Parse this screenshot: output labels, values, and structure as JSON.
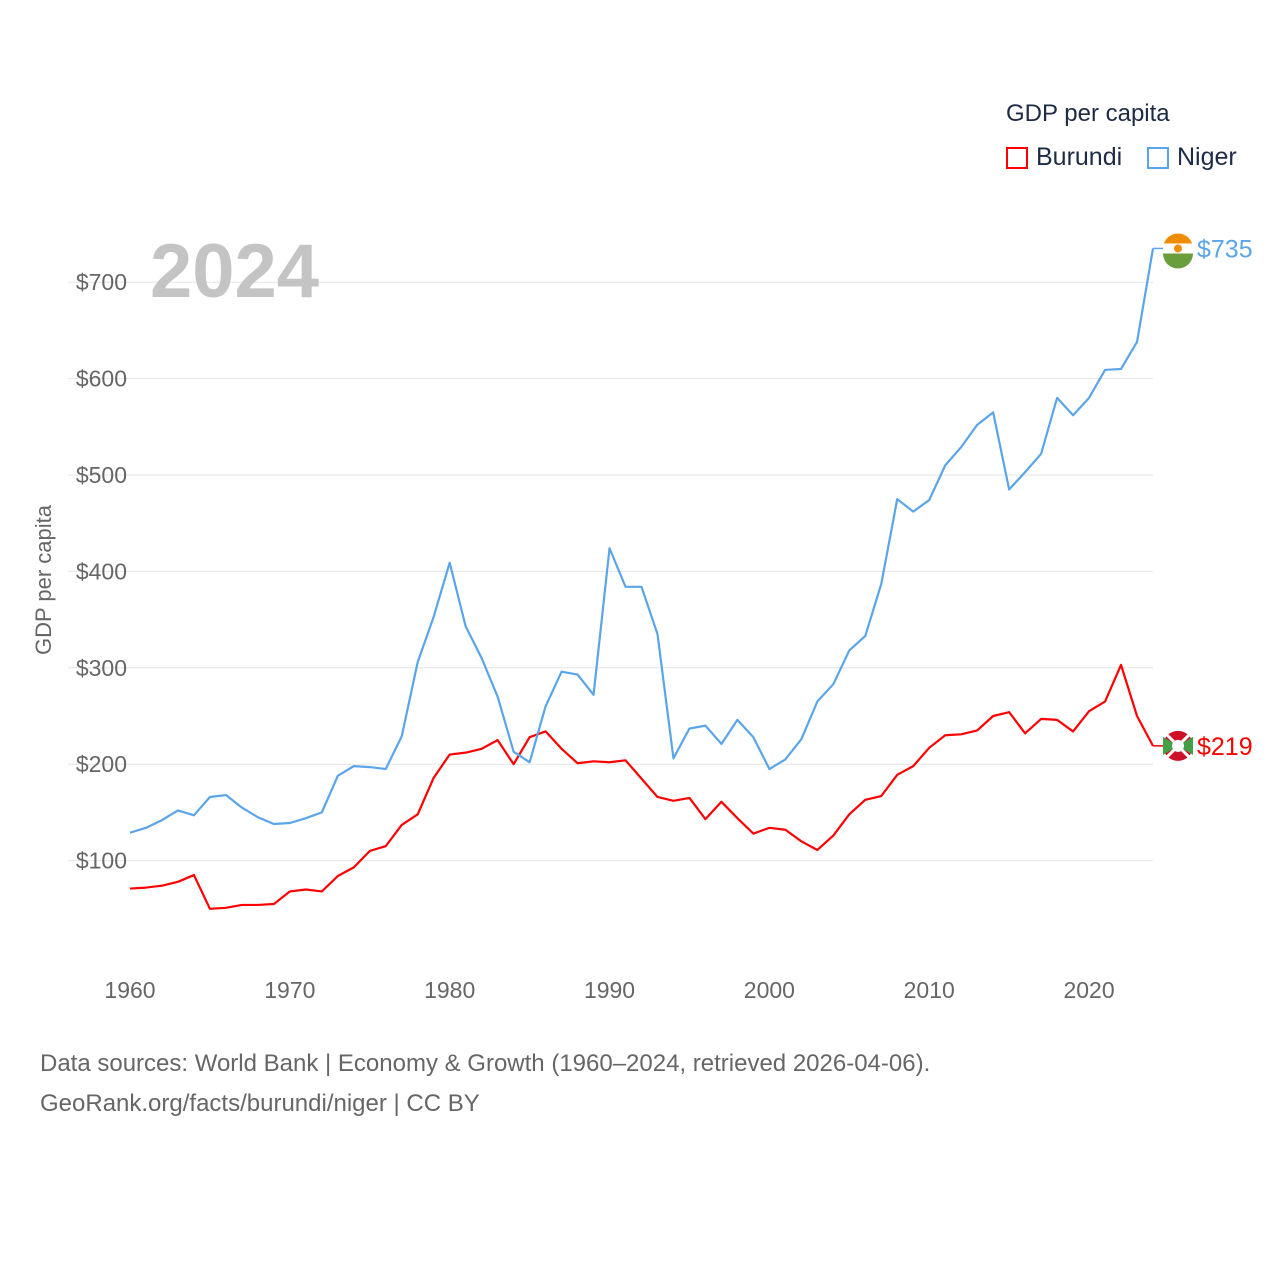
{
  "chart_data": {
    "type": "line",
    "title": "GDP per capita",
    "ylabel": "GDP per capita",
    "xlabel": "",
    "year_label": "2024",
    "xlim": [
      1960,
      2024
    ],
    "ylim": [
      0,
      760
    ],
    "x_ticks": [
      "1960",
      "1970",
      "1980",
      "1990",
      "2000",
      "2010",
      "2020"
    ],
    "y_ticks": [
      "$100",
      "$200",
      "$300",
      "$400",
      "$500",
      "$600",
      "$700"
    ],
    "legend_placement": "top-right",
    "x": [
      1960,
      1961,
      1962,
      1963,
      1964,
      1965,
      1966,
      1967,
      1968,
      1969,
      1970,
      1971,
      1972,
      1973,
      1974,
      1975,
      1976,
      1977,
      1978,
      1979,
      1980,
      1981,
      1982,
      1983,
      1984,
      1985,
      1986,
      1987,
      1988,
      1989,
      1990,
      1991,
      1992,
      1993,
      1994,
      1995,
      1996,
      1997,
      1998,
      1999,
      2000,
      2001,
      2002,
      2003,
      2004,
      2005,
      2006,
      2007,
      2008,
      2009,
      2010,
      2011,
      2012,
      2013,
      2014,
      2015,
      2016,
      2017,
      2018,
      2019,
      2020,
      2021,
      2022,
      2023,
      2024
    ],
    "series": [
      {
        "name": "Burundi",
        "color": "#ff0000",
        "end_label": "$219",
        "values": [
          71,
          72,
          74,
          78,
          85,
          50,
          51,
          54,
          54,
          55,
          68,
          70,
          68,
          84,
          93,
          110,
          115,
          137,
          148,
          186,
          210,
          212,
          216,
          225,
          200,
          228,
          234,
          216,
          201,
          203,
          202,
          204,
          185,
          166,
          162,
          165,
          143,
          161,
          144,
          128,
          134,
          132,
          120,
          111,
          126,
          148,
          163,
          167,
          189,
          198,
          217,
          230,
          231,
          235,
          250,
          254,
          232,
          247,
          246,
          234,
          255,
          265,
          303,
          250,
          219
        ]
      },
      {
        "name": "Niger",
        "color": "#5aa5ea",
        "end_label": "$735",
        "values": [
          129,
          134,
          142,
          152,
          147,
          166,
          168,
          155,
          145,
          138,
          139,
          144,
          150,
          188,
          198,
          197,
          195,
          229,
          306,
          353,
          409,
          343,
          310,
          270,
          213,
          202,
          260,
          296,
          293,
          272,
          424,
          384,
          384,
          335,
          206,
          237,
          240,
          221,
          246,
          228,
          195,
          205,
          226,
          265,
          283,
          318,
          333,
          387,
          475,
          462,
          474,
          510,
          529,
          552,
          565,
          485,
          503,
          522,
          580,
          562,
          580,
          609,
          610,
          638,
          735
        ]
      }
    ]
  },
  "source": {
    "line1": "Data sources: World Bank | Economy & Growth (1960–2024, retrieved 2026-04-06).",
    "line2": "GeoRank.org/facts/burundi/niger | CC BY"
  }
}
